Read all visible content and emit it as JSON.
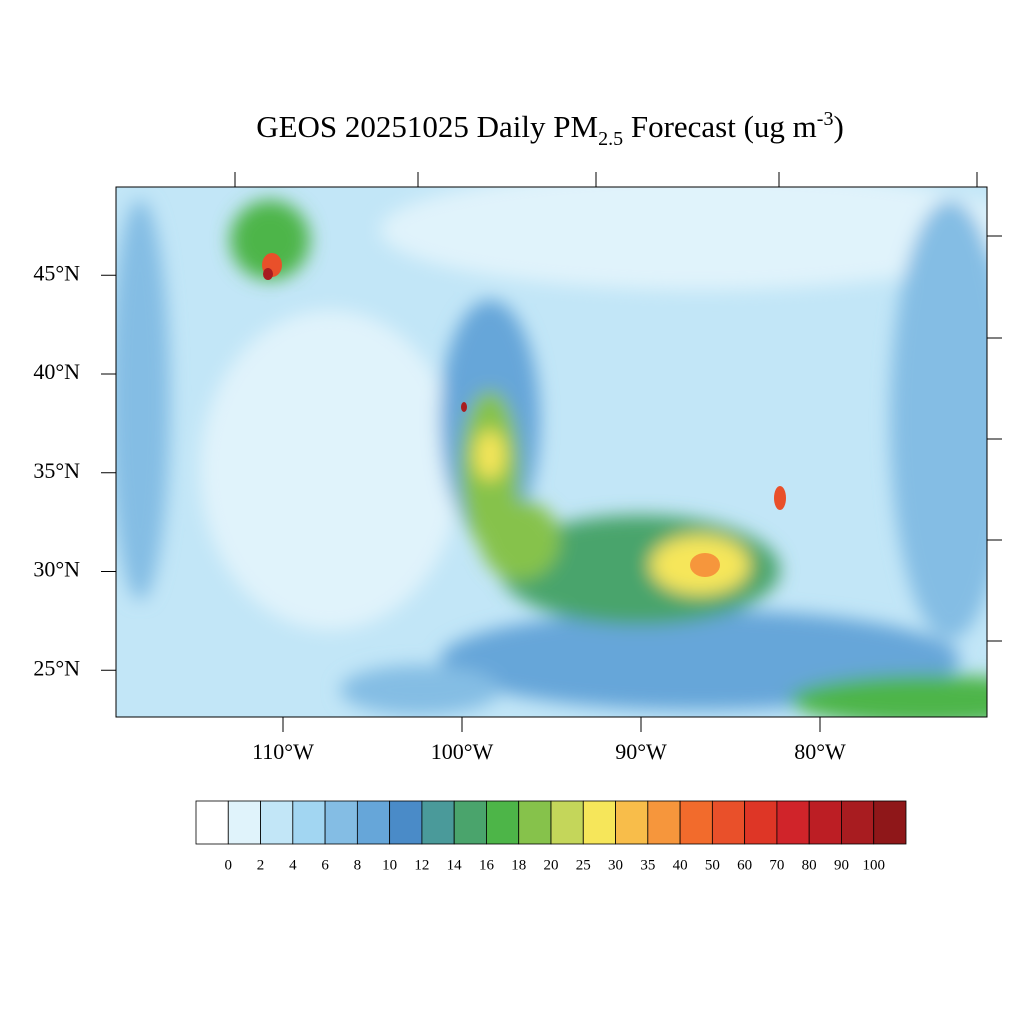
{
  "map": {
    "title": {
      "main": "GEOS 20251025 Daily PM",
      "sub": "2.5",
      "rest": " Forecast (ug m",
      "sup": "-3",
      "end": ")"
    },
    "latticks": [
      {
        "value": 45,
        "label": "45°N"
      },
      {
        "value": 40,
        "label": "40°N"
      },
      {
        "value": 35,
        "label": "35°N"
      },
      {
        "value": 30,
        "label": "30°N"
      },
      {
        "value": 25,
        "label": "25°N"
      }
    ],
    "lonticks": [
      {
        "value": -110,
        "label": "110°W"
      },
      {
        "value": -100,
        "label": "100°W"
      },
      {
        "value": -90,
        "label": "90°W"
      },
      {
        "value": -80,
        "label": "80°W"
      }
    ],
    "colorbar": {
      "levels": [
        {
          "value": 0,
          "label": "0"
        },
        {
          "value": 2,
          "label": "2"
        },
        {
          "value": 4,
          "label": "4"
        },
        {
          "value": 6,
          "label": "6"
        },
        {
          "value": 8,
          "label": "8"
        },
        {
          "value": 10,
          "label": "10"
        },
        {
          "value": 12,
          "label": "12"
        },
        {
          "value": 14,
          "label": "14"
        },
        {
          "value": 16,
          "label": "16"
        },
        {
          "value": 18,
          "label": "18"
        },
        {
          "value": 20,
          "label": "20"
        },
        {
          "value": 25,
          "label": "25"
        },
        {
          "value": 30,
          "label": "30"
        },
        {
          "value": 35,
          "label": "35"
        },
        {
          "value": 40,
          "label": "40"
        },
        {
          "value": 50,
          "label": "50"
        },
        {
          "value": 60,
          "label": "60"
        },
        {
          "value": 70,
          "label": "70"
        },
        {
          "value": 80,
          "label": "80"
        },
        {
          "value": 90,
          "label": "90"
        },
        {
          "value": 100,
          "label": "100"
        }
      ],
      "colors": [
        "#ffffff",
        "#e0f3fb",
        "#c2e6f7",
        "#a2d6f2",
        "#84bde4",
        "#66a6d9",
        "#4a8bc8",
        "#4a9a9a",
        "#4aa46c",
        "#4db548",
        "#86c24b",
        "#c4d65a",
        "#f6e65a",
        "#f8bd4a",
        "#f6963c",
        "#f26b2c",
        "#e9502a",
        "#de3626",
        "#d0242a",
        "#bc1e24",
        "#a81c20",
        "#8f1719"
      ]
    }
  }
}
